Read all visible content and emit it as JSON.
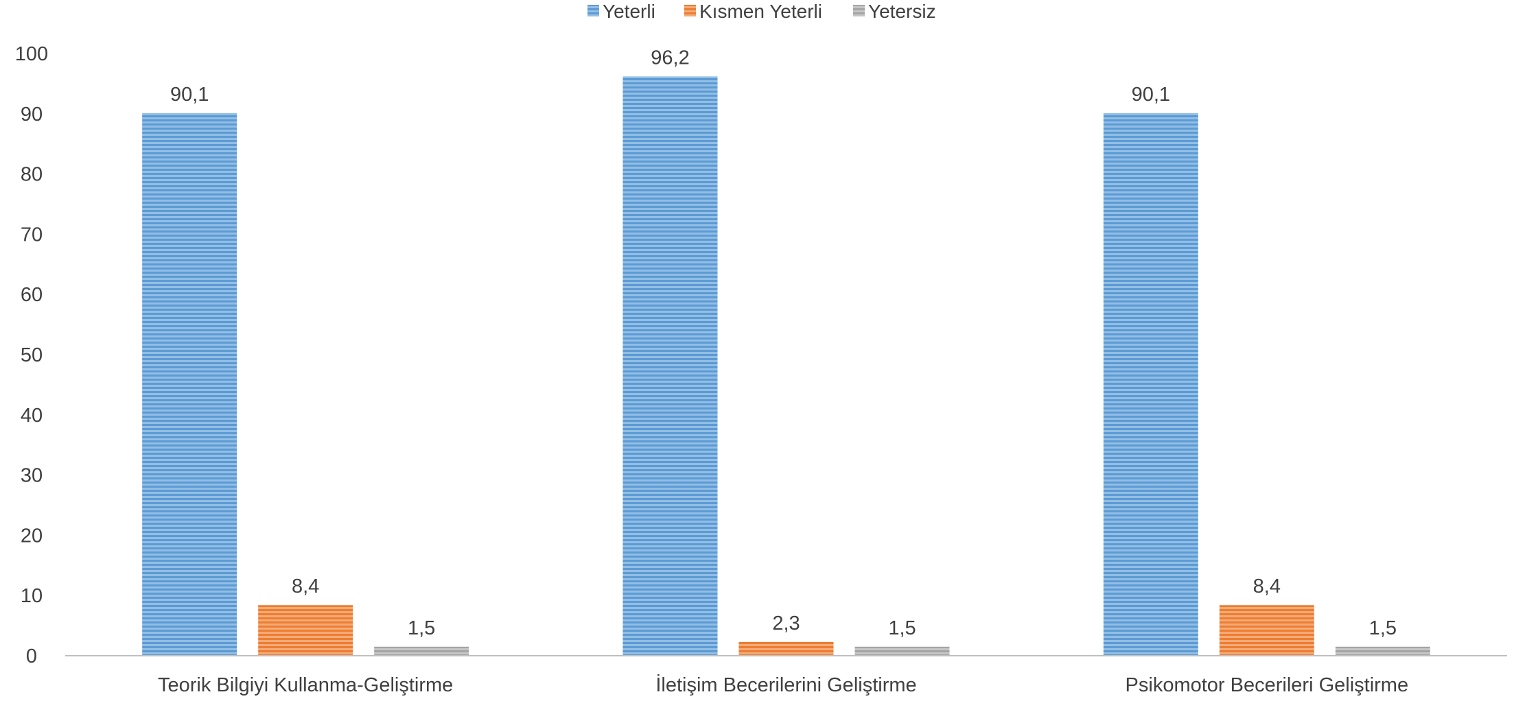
{
  "chart_data": {
    "type": "bar",
    "categories": [
      "Teorik Bilgiyi Kullanma-Geliştirme",
      "İletişim Becerilerini Geliştirme",
      "Psikomotor Becerileri Geliştirme"
    ],
    "series": [
      {
        "name": "Yeterli",
        "values": [
          90.1,
          96.2,
          90.1
        ],
        "color": "#5B9BD5"
      },
      {
        "name": "Kısmen Yeterli",
        "values": [
          8.4,
          2.3,
          8.4
        ],
        "color": "#ED7D31"
      },
      {
        "name": "Yetersiz",
        "values": [
          1.5,
          1.5,
          1.5
        ],
        "color": "#A5A5A5"
      }
    ],
    "data_labels": [
      [
        "90,1",
        "96,2",
        "90,1"
      ],
      [
        "8,4",
        "2,3",
        "8,4"
      ],
      [
        "1,5",
        "1,5",
        "1,5"
      ]
    ],
    "title": "",
    "xlabel": "",
    "ylabel": "",
    "ylim": [
      0,
      100
    ],
    "yticks": [
      0,
      10,
      20,
      30,
      40,
      50,
      60,
      70,
      80,
      90,
      100
    ],
    "ytick_labels": [
      "0",
      "10",
      "20",
      "30",
      "40",
      "50",
      "60",
      "70",
      "80",
      "90",
      "100"
    ],
    "grid": false,
    "legend_position": "top-center",
    "bar_fill": "horizontal-stripes"
  }
}
